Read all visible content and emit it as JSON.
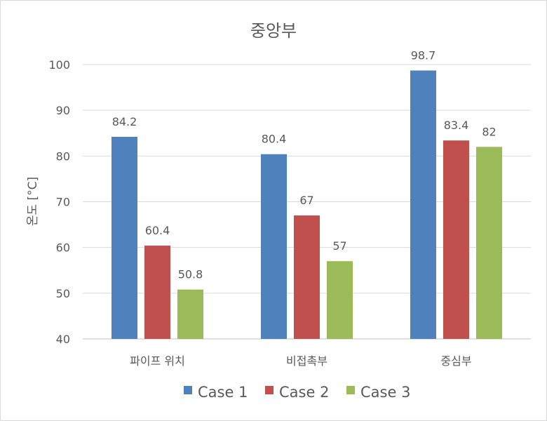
{
  "chart_data": {
    "type": "bar",
    "title": "중앙부",
    "xlabel": "",
    "ylabel": "온도 [°C]",
    "ylim": [
      40,
      100
    ],
    "yticks": [
      40,
      50,
      60,
      70,
      80,
      90,
      100
    ],
    "grid": true,
    "legend_position": "bottom",
    "categories": [
      "파이프 위치",
      "비접촉부",
      "중심부"
    ],
    "series": [
      {
        "name": "Case 1",
        "color": "#4F81BD",
        "values": [
          84.2,
          80.4,
          98.7
        ]
      },
      {
        "name": "Case 2",
        "color": "#C0504D",
        "values": [
          60.4,
          67,
          83.4
        ]
      },
      {
        "name": "Case 3",
        "color": "#9BBB59",
        "values": [
          50.8,
          57,
          82
        ]
      }
    ]
  }
}
